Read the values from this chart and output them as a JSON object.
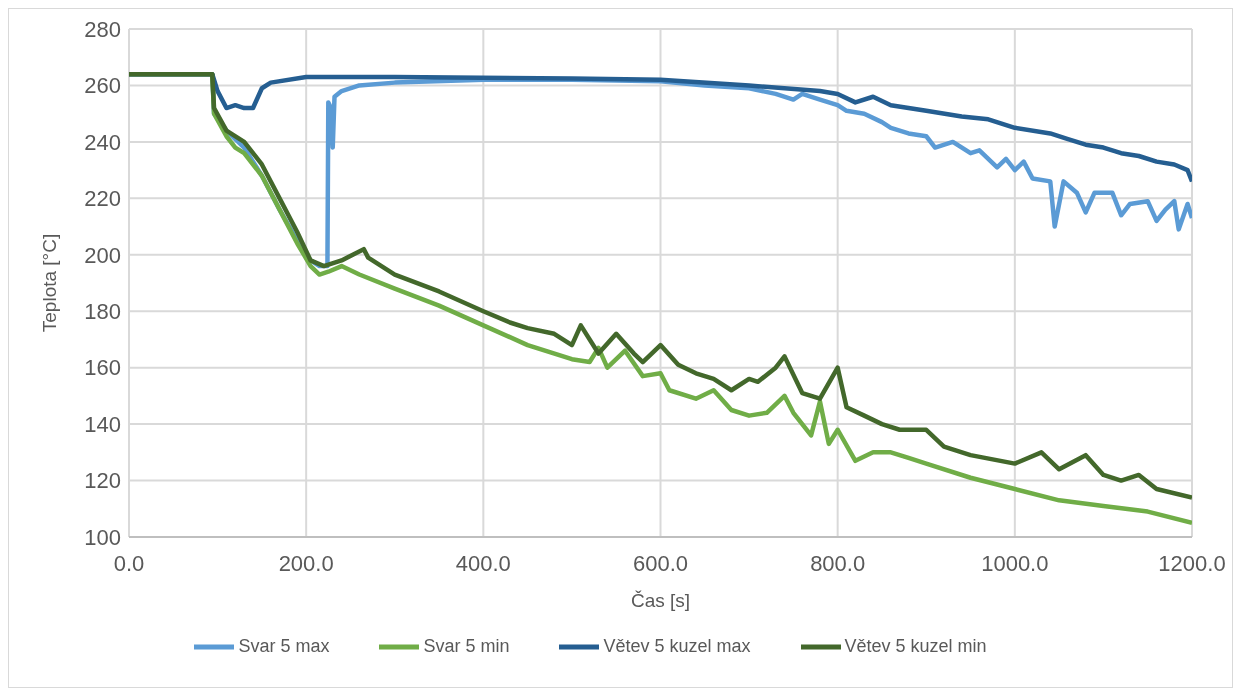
{
  "chart_data": {
    "type": "line",
    "xlabel": "Čas [s]",
    "ylabel": "Teplota [°C]",
    "xlim": [
      0,
      1200
    ],
    "xticks": [
      {
        "value": 0,
        "label": "0.0"
      },
      {
        "value": 200,
        "label": "200.0"
      },
      {
        "value": 400,
        "label": "400.0"
      },
      {
        "value": 600,
        "label": "600.0"
      },
      {
        "value": 800,
        "label": "800.0"
      },
      {
        "value": 1000,
        "label": "1000.0"
      },
      {
        "value": 1200,
        "label": "1200.0"
      }
    ],
    "ylim": [
      100,
      280
    ],
    "yticks": [
      100,
      120,
      140,
      160,
      180,
      200,
      220,
      240,
      260,
      280
    ],
    "grid": true,
    "legend": "bottom",
    "marker": "none",
    "line_style": "solid",
    "series": [
      {
        "name": "Svar 5 max",
        "color": "#5b9bd5",
        "x": [
          94,
          96,
          110,
          130,
          150,
          170,
          190,
          205,
          215,
          224,
          225,
          228,
          230,
          232,
          240,
          260,
          300,
          400,
          500,
          600,
          650,
          700,
          730,
          750,
          760,
          780,
          800,
          810,
          830,
          850,
          860,
          880,
          900,
          910,
          930,
          950,
          960,
          980,
          990,
          1000,
          1010,
          1020,
          1040,
          1045,
          1055,
          1070,
          1080,
          1090,
          1110,
          1120,
          1130,
          1150,
          1160,
          1170,
          1180,
          1185,
          1195,
          1200
        ],
        "values": [
          264,
          250,
          244,
          238,
          228,
          216,
          205,
          198,
          196,
          196,
          254,
          252,
          238,
          256,
          258,
          260,
          261,
          262,
          262,
          261.5,
          260,
          259,
          257,
          255,
          257,
          255,
          253,
          251,
          250,
          247,
          245,
          243,
          242,
          238,
          240,
          236,
          237,
          231,
          234,
          230,
          233,
          227,
          226,
          210,
          226,
          222,
          215,
          222,
          222,
          214,
          218,
          219,
          212,
          216,
          219,
          209,
          218,
          213
        ]
      },
      {
        "name": "Svar 5 min",
        "color": "#70ad47",
        "x": [
          0,
          94,
          96,
          110,
          120,
          130,
          150,
          170,
          190,
          205,
          215,
          225,
          240,
          260,
          300,
          350,
          400,
          450,
          500,
          520,
          530,
          540,
          560,
          580,
          600,
          610,
          640,
          660,
          680,
          700,
          720,
          740,
          750,
          770,
          780,
          790,
          800,
          820,
          840,
          860,
          880,
          900,
          950,
          1000,
          1050,
          1100,
          1150,
          1200
        ],
        "values": [
          264,
          264,
          250,
          242,
          238,
          236,
          228,
          216,
          204,
          196,
          193,
          194,
          196,
          193,
          188,
          182,
          175,
          168,
          163,
          162,
          167,
          160,
          166,
          157,
          158,
          152,
          149,
          152,
          145,
          143,
          144,
          150,
          144,
          136,
          148,
          133,
          138,
          127,
          130,
          130,
          128,
          126,
          121,
          117,
          113,
          111,
          109,
          105
        ]
      },
      {
        "name": "Větev 5 kuzel max",
        "color": "#255e91",
        "x": [
          0,
          94,
          100,
          110,
          120,
          130,
          140,
          150,
          160,
          200,
          300,
          500,
          600,
          700,
          780,
          800,
          820,
          840,
          860,
          900,
          940,
          970,
          1000,
          1040,
          1060,
          1080,
          1100,
          1120,
          1140,
          1160,
          1180,
          1195,
          1200
        ],
        "values": [
          264,
          264,
          258,
          252,
          253,
          252,
          252,
          259,
          261,
          263,
          263,
          262.5,
          262,
          260,
          258,
          257,
          254,
          256,
          253,
          251,
          249,
          248,
          245,
          243,
          241,
          239,
          238,
          236,
          235,
          233,
          232,
          230,
          226
        ]
      },
      {
        "name": "Větev 5 kuzel min",
        "color": "#43682b",
        "x": [
          0,
          94,
          96,
          110,
          130,
          150,
          170,
          190,
          205,
          220,
          240,
          265,
          270,
          300,
          350,
          400,
          430,
          450,
          480,
          500,
          510,
          530,
          550,
          570,
          580,
          600,
          620,
          640,
          660,
          680,
          700,
          710,
          730,
          740,
          760,
          780,
          800,
          810,
          830,
          850,
          870,
          900,
          920,
          950,
          1000,
          1030,
          1050,
          1080,
          1100,
          1120,
          1140,
          1160,
          1200
        ],
        "values": [
          264,
          264,
          252,
          244,
          240,
          232,
          220,
          208,
          198,
          196,
          198,
          202,
          199,
          193,
          187,
          180,
          176,
          174,
          172,
          168,
          175,
          165,
          172,
          165,
          162,
          168,
          161,
          158,
          156,
          152,
          156,
          155,
          160,
          164,
          151,
          149,
          160,
          146,
          143,
          140,
          138,
          138,
          132,
          129,
          126,
          130,
          124,
          129,
          122,
          120,
          122,
          117,
          114
        ]
      }
    ]
  }
}
